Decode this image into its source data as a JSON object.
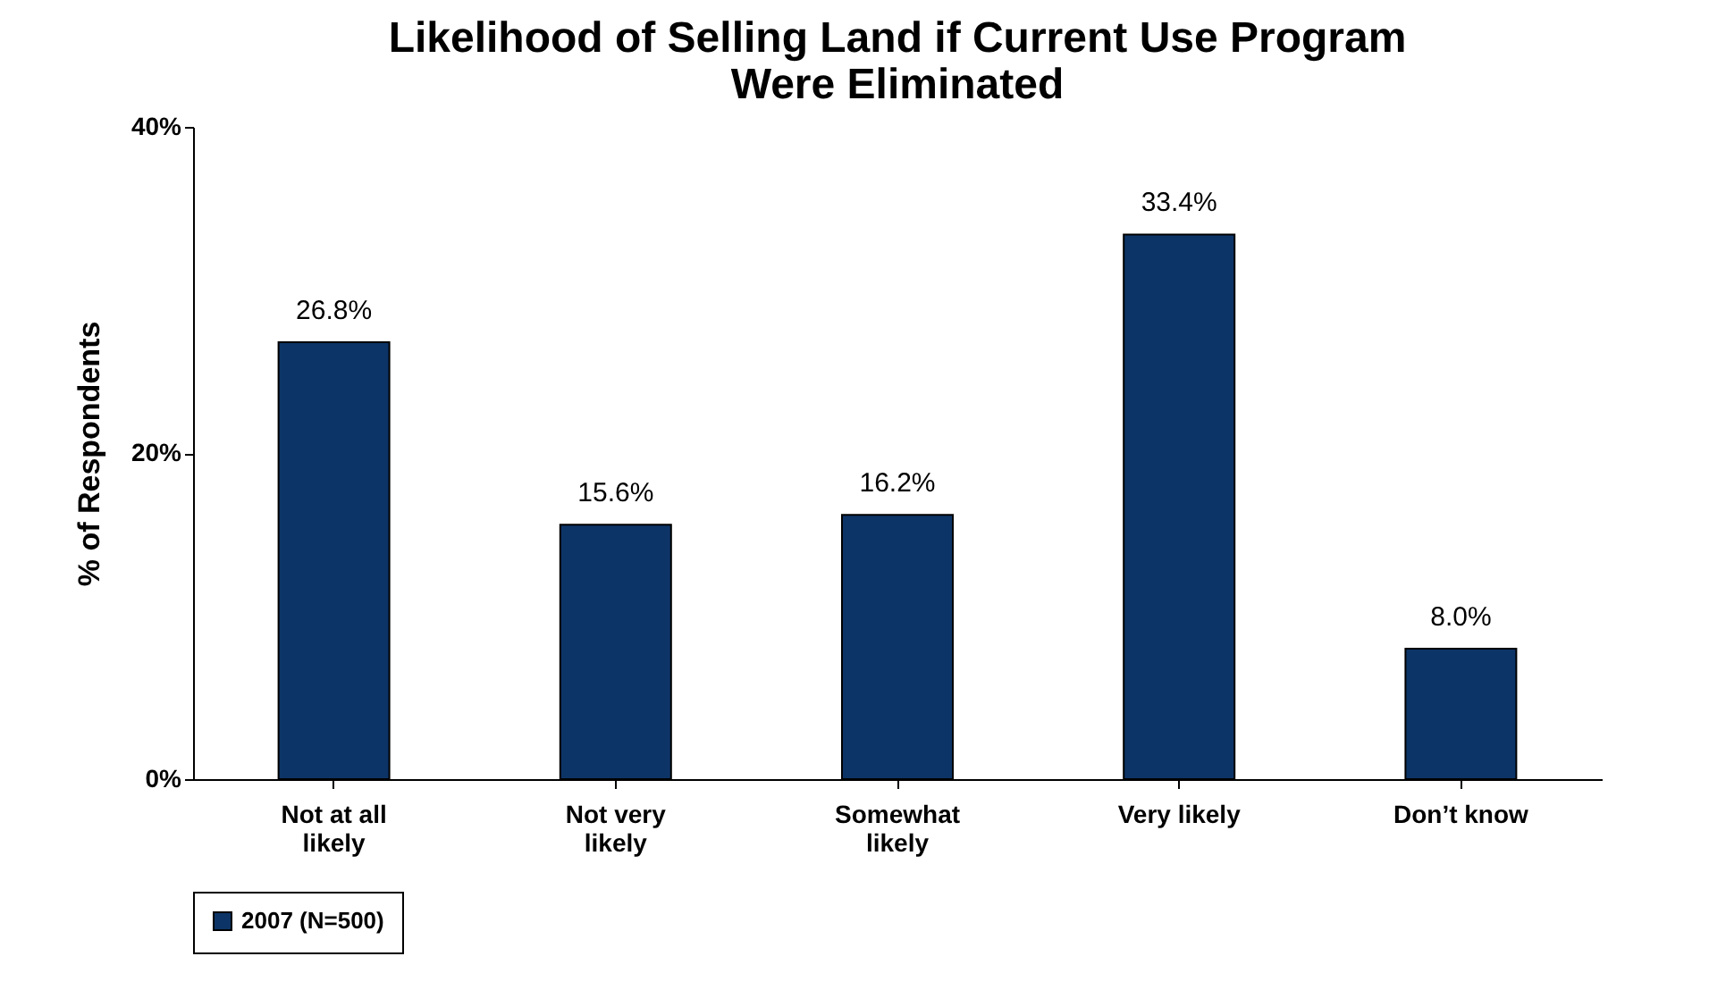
{
  "chart_data": {
    "type": "bar",
    "title": "Likelihood of Selling Land if Current Use Program Were Eliminated",
    "ylabel": "% of Respondents",
    "categories": [
      "Not at all likely",
      "Not very likely",
      "Somewhat likely",
      "Very likely",
      "Don’t know"
    ],
    "series": [
      {
        "name": "2007 (N=500)",
        "color": "#0d3466",
        "values": [
          26.8,
          15.6,
          16.2,
          33.4,
          8.0
        ],
        "value_labels": [
          "26.8%",
          "15.6%",
          "16.2%",
          "33.4%",
          "8.0%"
        ]
      }
    ],
    "ylim": [
      0,
      40
    ],
    "yticks": [
      {
        "value": 0,
        "label": "0%"
      },
      {
        "value": 20,
        "label": "20%"
      },
      {
        "value": 40,
        "label": "40%"
      }
    ],
    "grid": false,
    "legend": "bottom"
  }
}
